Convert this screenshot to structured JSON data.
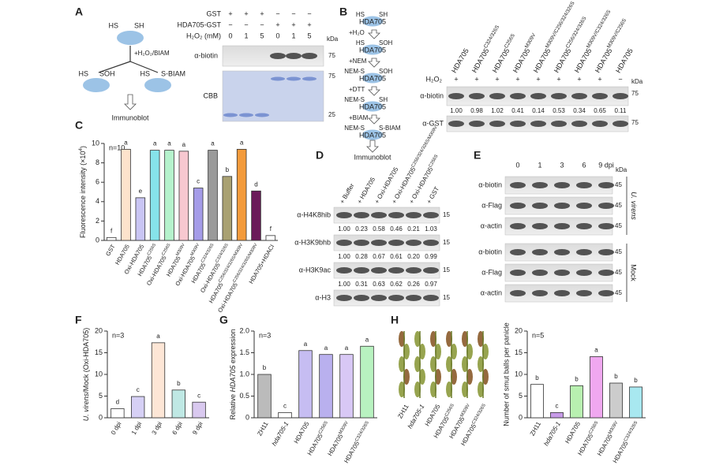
{
  "panel_labels": [
    "A",
    "B",
    "C",
    "D",
    "E",
    "F",
    "G",
    "H"
  ],
  "panel_a": {
    "diagram": {
      "top": [
        "HS",
        "SH"
      ],
      "reagent": "+H₂O₂/BIAM",
      "left": [
        "HS",
        "SOH"
      ],
      "right": [
        "HS",
        "S-BIAM"
      ],
      "readout": "Immunoblot"
    },
    "rows": [
      {
        "label": "GST",
        "cells": [
          "+",
          "+",
          "+",
          "−",
          "−",
          "−"
        ]
      },
      {
        "label": "HDA705-GST",
        "cells": [
          "−",
          "−",
          "−",
          "+",
          "+",
          "+"
        ]
      },
      {
        "label": "H₂O₂ (mM)",
        "cells": [
          "0",
          "1",
          "5",
          "0",
          "1",
          "5"
        ]
      }
    ],
    "kda": "kDa",
    "blots": [
      {
        "label": "α-biotin",
        "markers": [
          "75"
        ]
      },
      {
        "label": "CBB",
        "markers": [
          "75",
          "25"
        ]
      }
    ]
  },
  "panel_b": {
    "diagram": [
      {
        "left": "HS",
        "right": "SH",
        "blob": "HDA705"
      },
      {
        "reagent": "+H₂O"
      },
      {
        "left": "HS",
        "right": "SOH",
        "blob": "HDA705"
      },
      {
        "reagent": "+NEM"
      },
      {
        "left": "NEM-S",
        "right": "SOH",
        "blob": "HDA705"
      },
      {
        "reagent": "+DTT"
      },
      {
        "left": "NEM-S",
        "right": "SH",
        "blob": "HDA705"
      },
      {
        "reagent": "+BIAM"
      },
      {
        "left": "NEM-S",
        "right": "S-BIAM",
        "blob": "HDA705"
      }
    ],
    "readout": "Immunoblot",
    "lanes": [
      "HDA705",
      [
        "HDA705",
        {
          "sup": "C324/326S"
        }
      ],
      [
        "HDA705",
        {
          "sup": "C256S"
        }
      ],
      [
        "HDA705",
        {
          "sup": "M309V"
        }
      ],
      [
        "HDA705",
        {
          "sup": "M309V/C256/324/326S"
        }
      ],
      [
        "HDA705",
        {
          "sup": "C256/324/326S"
        }
      ],
      [
        "HDA705",
        {
          "sup": "M309V/C324/326S"
        }
      ],
      [
        "HDA705",
        {
          "sup": "M309V/C256S"
        }
      ],
      "HDA705"
    ],
    "treatment": {
      "label": "H₂O₂",
      "cells": [
        "+",
        "+",
        "+",
        "+",
        "+",
        "+",
        "+",
        "+",
        "−"
      ]
    },
    "kda": "kDa",
    "blots": [
      {
        "label": "α-biotin",
        "marker": "75",
        "quant": [
          "1.00",
          "0.98",
          "1.02",
          "0.41",
          "0.14",
          "0.53",
          "0.34",
          "0.65",
          "0.11"
        ]
      },
      {
        "label": "α-GST",
        "marker": "75"
      }
    ]
  },
  "panel_d": {
    "lanes": [
      "+ Buffer",
      "+ HDA705",
      "+ Oxi-HDA705",
      [
        "+ Oxi-HDA705",
        {
          "sup": "C256/324/326S/M309V"
        }
      ],
      [
        "+ Oxi-HDA705",
        {
          "sup": "C256S"
        }
      ],
      "+ GST"
    ],
    "blots": [
      {
        "label": "α-H4K8hib",
        "marker": "15",
        "quant": [
          "1.00",
          "0.23",
          "0.58",
          "0.46",
          "0.21",
          "1.03"
        ]
      },
      {
        "label": "α-H3K9bhb",
        "marker": "15",
        "quant": [
          "1.00",
          "0.28",
          "0.67",
          "0.61",
          "0.20",
          "0.99"
        ]
      },
      {
        "label": "α-H3K9ac",
        "marker": "15",
        "quant": [
          "1.00",
          "0.31",
          "0.63",
          "0.62",
          "0.26",
          "0.97"
        ]
      },
      {
        "label": "α-H3",
        "marker": "15"
      }
    ]
  },
  "panel_e": {
    "times": [
      "0",
      "1",
      "3",
      "6",
      "9 dpi"
    ],
    "kda": "kDa",
    "groups": [
      {
        "label": [
          {
            "italic": "U. virens"
          }
        ],
        "blots": [
          {
            "label": "α-biotin",
            "marker": "45"
          },
          {
            "label": "α-Flag",
            "marker": "45"
          },
          {
            "label": "α-actin",
            "marker": "45"
          }
        ]
      },
      {
        "label": "Mock",
        "blots": [
          {
            "label": "α-biotin",
            "marker": "45"
          },
          {
            "label": "α-Flag",
            "marker": "45"
          },
          {
            "label": "α-actin",
            "marker": "45"
          }
        ]
      }
    ]
  },
  "panel_h_photos": {
    "labels": [
      "ZH11",
      [
        {
          "italic": "hda705-1"
        }
      ],
      "HDA705",
      [
        "HDA705",
        {
          "sup": "C256S"
        }
      ],
      [
        "HDA705",
        {
          "sup": "M309V"
        }
      ],
      [
        "HDA705",
        {
          "sup": "C324/326S"
        }
      ]
    ]
  },
  "chart_data": [
    {
      "type": "bar",
      "ylabel": [
        "Fluorescence intensity (×10",
        {
          "sup": "4"
        },
        ")"
      ],
      "n_label": "n=10",
      "categories": [
        "GST",
        "HDA705",
        "Oxi-HDA705",
        [
          "HDA705",
          {
            "sup": "C256S"
          }
        ],
        [
          "Oxi-HDA705",
          {
            "sup": "C256S"
          }
        ],
        [
          "HDA705",
          {
            "sup": "M309V"
          }
        ],
        [
          "Oxi-HDA705",
          {
            "sup": "M309V"
          }
        ],
        [
          "HDA705",
          {
            "sup": "C324/326S"
          }
        ],
        [
          "Oxi-HDA705",
          {
            "sup": "C324/326S"
          }
        ],
        [
          "HDA705",
          {
            "sup": "C256/324/326S/M309V"
          }
        ],
        [
          "Oxi-HDA705",
          {
            "sup": "C256/324/326S/M309V"
          }
        ],
        "HDA705+HDACI"
      ],
      "values": [
        0.3,
        9.4,
        4.4,
        9.3,
        9.3,
        9.2,
        5.4,
        9.3,
        6.6,
        9.4,
        5.1,
        0.5
      ],
      "letters": [
        "f",
        "a",
        "e",
        "a",
        "a",
        "a",
        "c",
        "a",
        "b",
        "a",
        "d",
        "f"
      ],
      "colors": [
        "#ffffff",
        "#fde3cc",
        "#c9c5f4",
        "#86e3ea",
        "#b5f2cc",
        "#f7c8d0",
        "#a59ce8",
        "#9a9a9a",
        "#a9a172",
        "#f39b3c",
        "#6b1a5a",
        "#ffffff"
      ],
      "ylim": [
        0,
        10
      ],
      "yticks": [
        0,
        2,
        4,
        6,
        8,
        10
      ]
    },
    {
      "type": "bar",
      "ylabel": [
        {
          "italic": "U. virens"
        },
        "/Mock (Oxi-HDA705)"
      ],
      "n_label": "n=3",
      "categories": [
        "0 dpi",
        "1 dpi",
        "3 dpi",
        "6 dpi",
        "9 dpi"
      ],
      "values": [
        2.1,
        4.9,
        17.3,
        6.4,
        3.6
      ],
      "letters": [
        "d",
        "c",
        "a",
        "b",
        "c"
      ],
      "colors": [
        "#ffffff",
        "#d6d0f5",
        "#fde6d6",
        "#bfe8e4",
        "#d9c9ef"
      ],
      "ylim": [
        0,
        20
      ],
      "yticks": [
        0,
        5,
        10,
        15,
        20
      ]
    },
    {
      "type": "bar",
      "ylabel": [
        "Relative ",
        {
          "italic": "HDA705"
        },
        " expression"
      ],
      "n_label": "n=3",
      "categories": [
        "ZH11",
        [
          {
            "italic": "hda705-1"
          }
        ],
        "HDA705",
        [
          "HDA705",
          {
            "sup": "C256S"
          }
        ],
        [
          "HDA705",
          {
            "sup": "M309V"
          }
        ],
        [
          "HDA705",
          {
            "sup": "C324/326S"
          }
        ]
      ],
      "values": [
        1.0,
        0.12,
        1.55,
        1.46,
        1.46,
        1.65
      ],
      "letters": [
        "b",
        "c",
        "a",
        "a",
        "a",
        "a"
      ],
      "colors": [
        "#bbbbbb",
        "#ffffff",
        "#c6bdf2",
        "#b9b0ee",
        "#d8c8f5",
        "#b8f2c0"
      ],
      "ylim": [
        0,
        2
      ],
      "yticks": [
        0,
        0.5,
        {
          "value": 1,
          "label": "1.0"
        },
        1.5,
        {
          "value": 2,
          "label": "2.0"
        }
      ]
    },
    {
      "type": "bar",
      "ylabel": "Number of smut balls per panicle",
      "n_label": "n=5",
      "categories": [
        "ZH11",
        [
          {
            "italic": "hda705-1"
          }
        ],
        "HDA705",
        [
          "HDA705",
          {
            "sup": "C256S"
          }
        ],
        [
          "HDA705",
          {
            "sup": "M309V"
          }
        ],
        [
          "HDA705",
          {
            "sup": "C324/326S"
          }
        ]
      ],
      "values": [
        7.7,
        1.2,
        7.4,
        14.1,
        8.0,
        7.1
      ],
      "letters": [
        "b",
        "c",
        "b",
        "a",
        "b",
        "b"
      ],
      "colors": [
        "#ffffff",
        "#c79be8",
        "#b8f0b0",
        "#f0a8f0",
        "#cccccc",
        "#a8e8f0"
      ],
      "ylim": [
        0,
        20
      ],
      "yticks": [
        0,
        5,
        10,
        15,
        20
      ]
    }
  ]
}
